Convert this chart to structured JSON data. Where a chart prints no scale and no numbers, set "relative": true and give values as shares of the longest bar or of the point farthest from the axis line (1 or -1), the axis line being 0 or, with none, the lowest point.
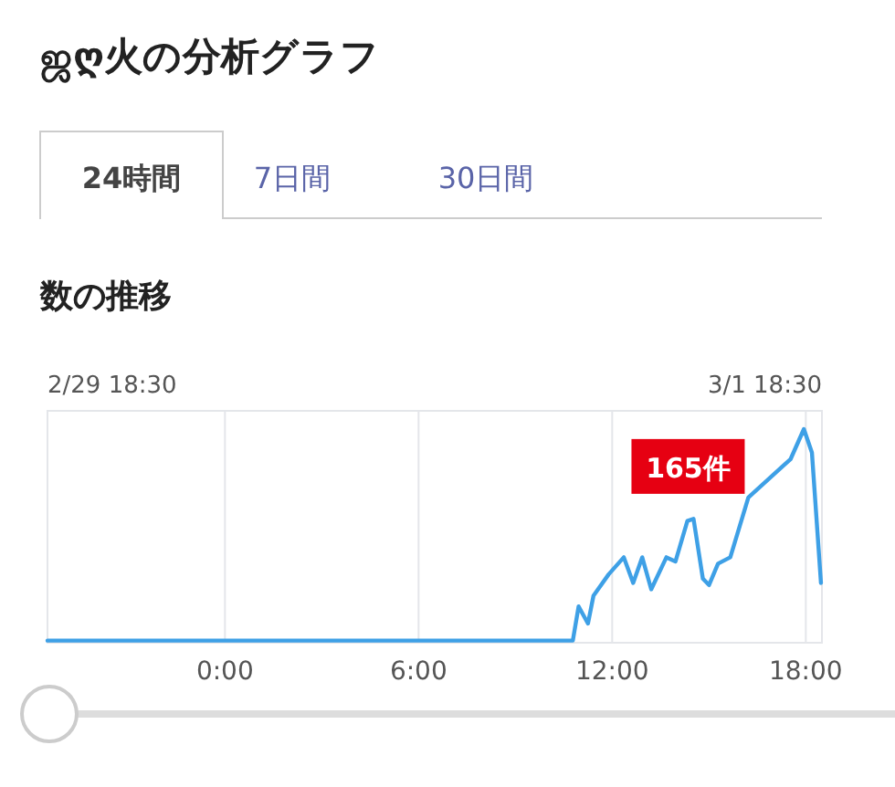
{
  "chart_data": {
    "type": "line",
    "title": "ஜღ火の分析グラフ",
    "subtitle": "数の推移",
    "annotations": [
      "24時間",
      "7日間",
      "30日間",
      "2/29 18:30",
      "3/1 18:30",
      {
        "text": "165件",
        "x": 16.22,
        "y": 0.68
      }
    ],
    "relative": true,
    "grid": "x",
    "xlim": [
      -5.5,
      18.5
    ],
    "xticks": [
      {
        "value": 0,
        "label": "0:00"
      },
      {
        "value": 6,
        "label": "6:00"
      },
      {
        "value": 12,
        "label": "12:00"
      },
      {
        "value": 18,
        "label": "18:00"
      }
    ],
    "x": [
      -5.5,
      -3,
      0,
      3,
      6,
      8,
      10.78,
      10.96,
      11.25,
      11.42,
      11.89,
      12.36,
      12.65,
      12.93,
      13.21,
      13.68,
      13.96,
      14.33,
      14.52,
      14.81,
      15.0,
      15.28,
      15.66,
      16.22,
      17.53,
      17.94,
      18.19,
      18.47
    ],
    "series": [
      {
        "color": "#3ea0e6",
        "values": [
          0.01,
          0.01,
          0.01,
          0.01,
          0.01,
          0.01,
          0.01,
          0.17,
          0.09,
          0.22,
          0.32,
          0.4,
          0.28,
          0.4,
          0.25,
          0.4,
          0.38,
          0.57,
          0.58,
          0.3,
          0.27,
          0.37,
          0.4,
          0.68,
          0.86,
          1.0,
          0.89,
          0.28
        ]
      }
    ]
  }
}
